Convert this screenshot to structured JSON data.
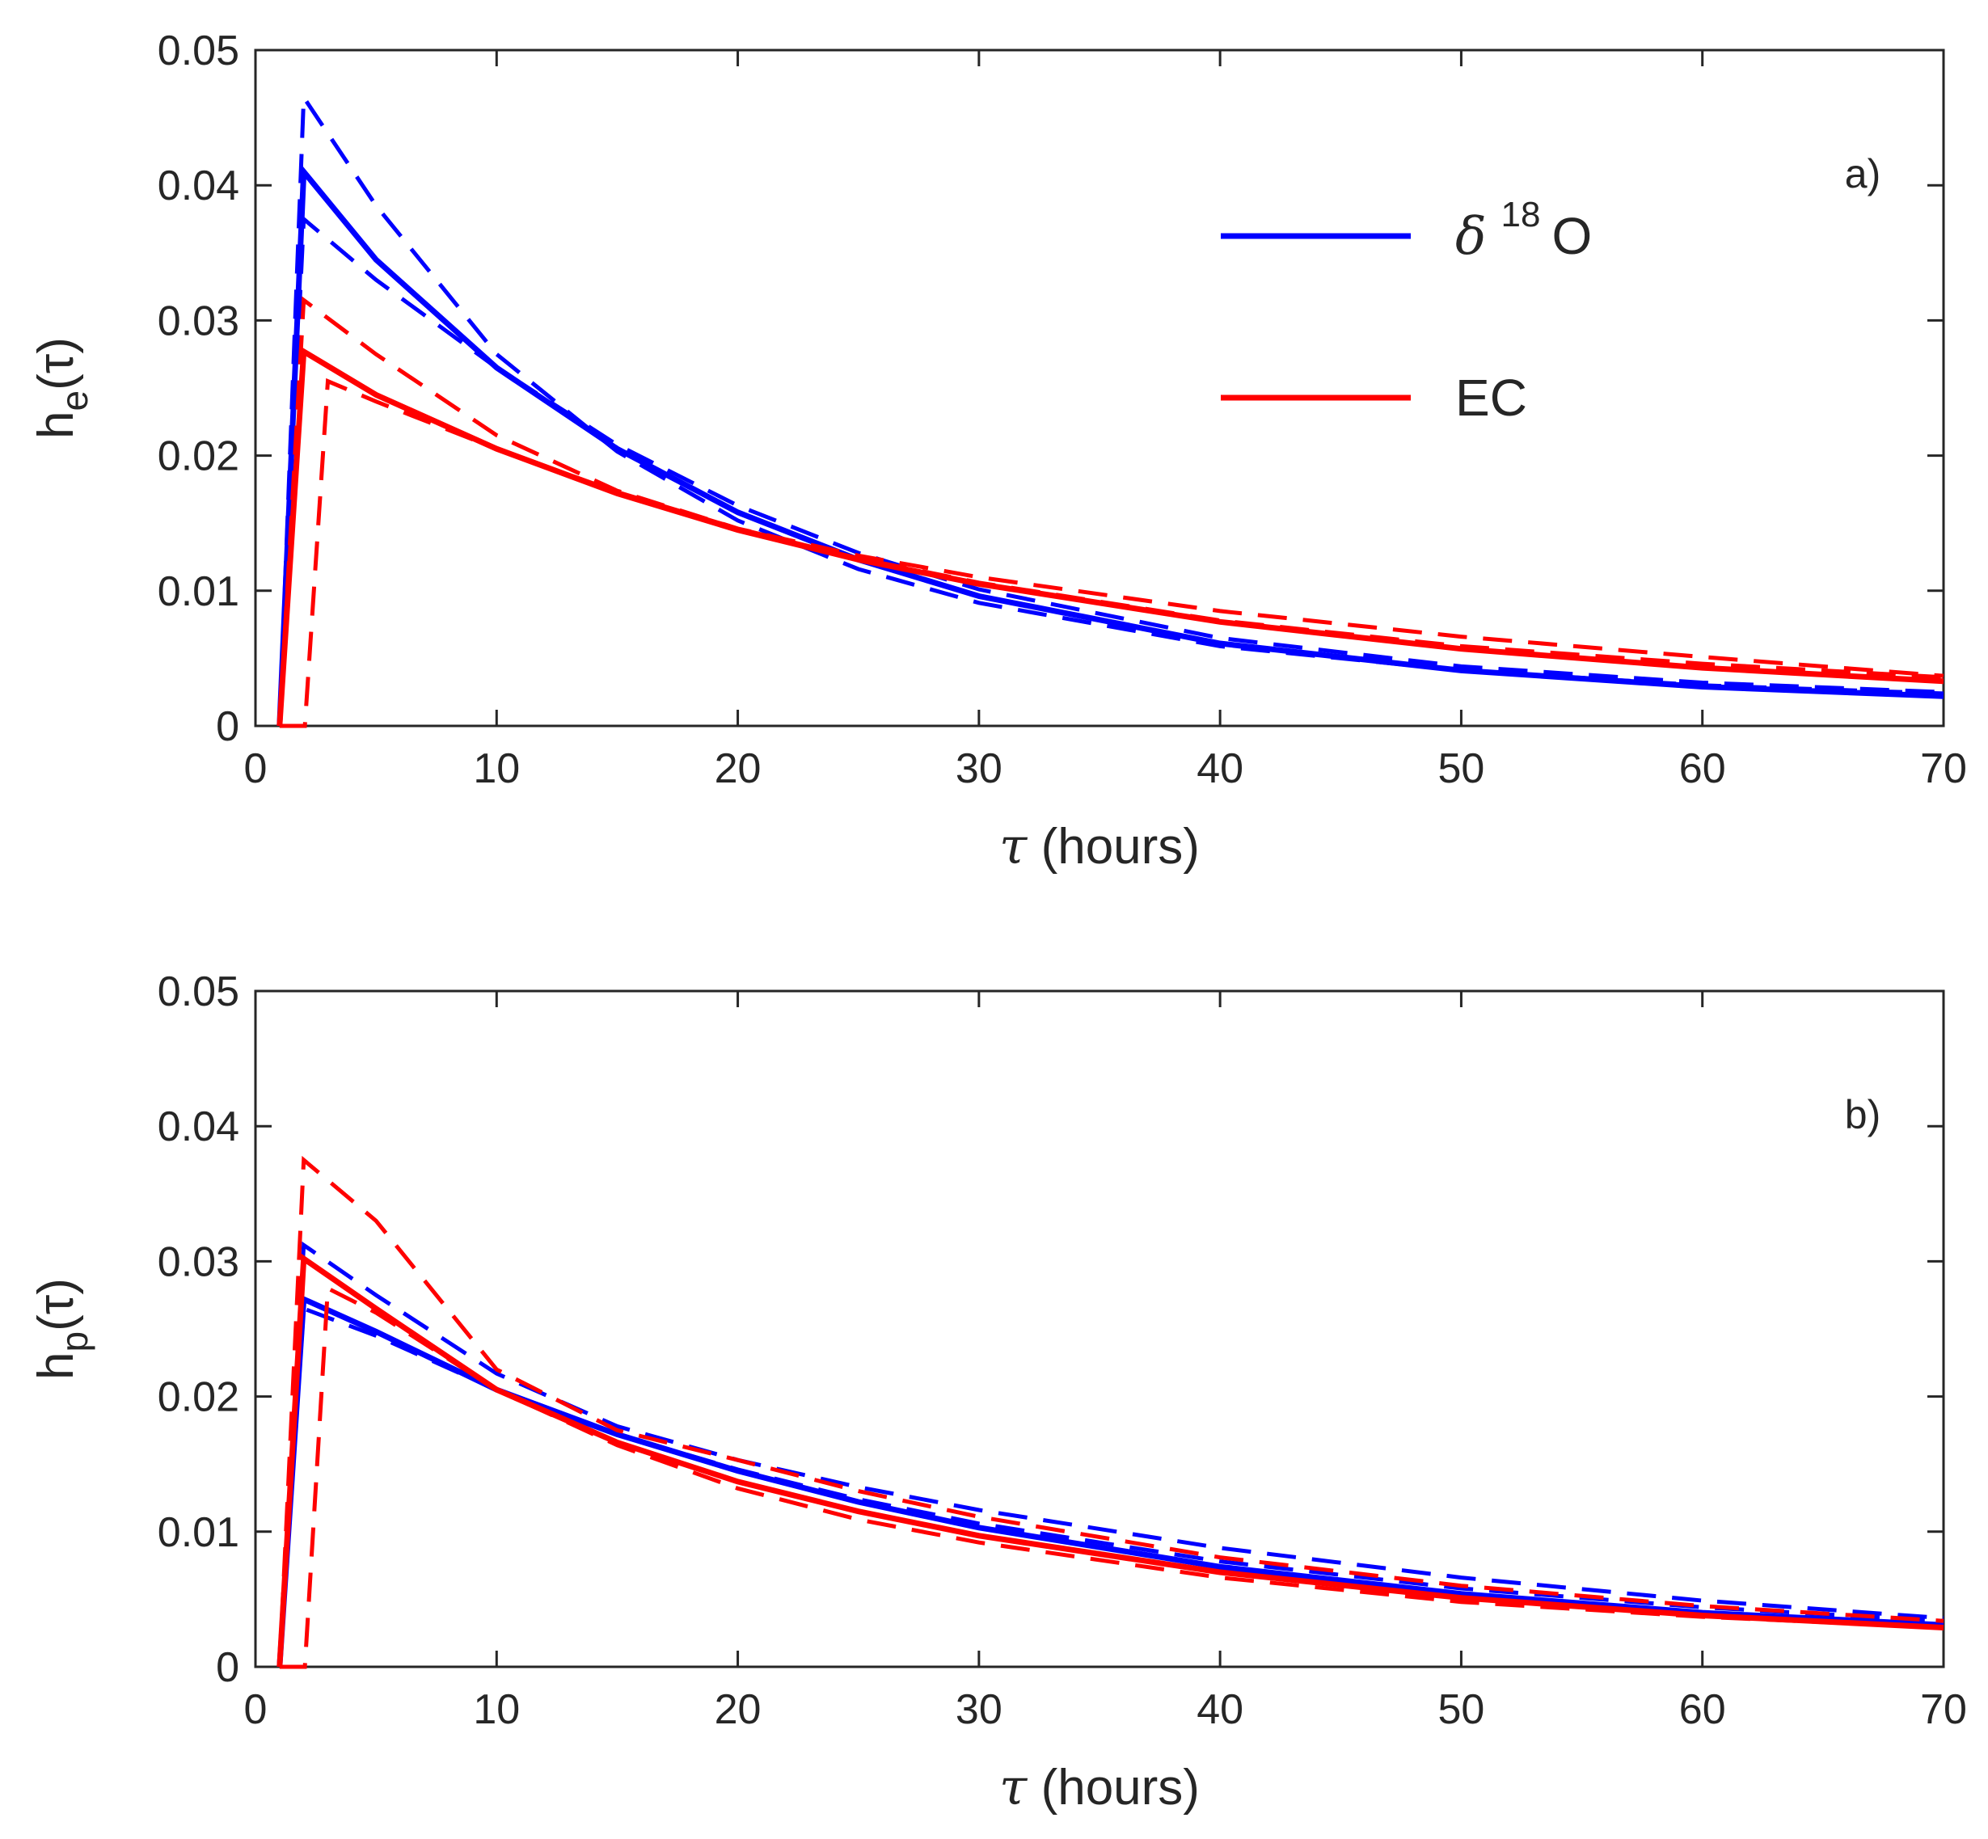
{
  "chart_data": [
    {
      "type": "line",
      "panel": "a)",
      "ylabel_base": "h",
      "ylabel_sub": "e",
      "ylabel_arg": "(τ)",
      "xlabel_sym": "τ",
      "xlabel_text": " (hours)",
      "xlim": [
        0,
        70
      ],
      "ylim": [
        0,
        0.05
      ],
      "xticks": [
        "0",
        "10",
        "20",
        "30",
        "40",
        "50",
        "60",
        "70"
      ],
      "yticks": [
        "0",
        "0.01",
        "0.02",
        "0.03",
        "0.04",
        "0.05"
      ],
      "legend": {
        "position": "top-right",
        "entries": [
          {
            "sym": "δ",
            "sup": "18",
            "text": "O",
            "color": "#0000ff"
          },
          {
            "text": "EC",
            "color": "#ff0000"
          }
        ]
      },
      "series": [
        {
          "name": "δ18O",
          "style": "solid",
          "color": "#0000ff",
          "x": [
            1,
            2,
            5,
            10,
            15,
            20,
            25,
            30,
            40,
            50,
            60,
            70
          ],
          "y": [
            0,
            0.041,
            0.0345,
            0.0265,
            0.0205,
            0.0158,
            0.0123,
            0.0096,
            0.0061,
            0.0041,
            0.0029,
            0.0022
          ]
        },
        {
          "name": "δ18O upper bound",
          "style": "dashed",
          "color": "#0000ff",
          "x": [
            1,
            2,
            5,
            10,
            15,
            20,
            25,
            30,
            40,
            50,
            60,
            70
          ],
          "y": [
            0,
            0.0465,
            0.0385,
            0.0275,
            0.0203,
            0.0152,
            0.0116,
            0.0091,
            0.0059,
            0.0041,
            0.003,
            0.0024
          ]
        },
        {
          "name": "δ18O lower bound",
          "style": "dashed",
          "color": "#0000ff",
          "x": [
            1,
            2,
            5,
            10,
            15,
            20,
            25,
            30,
            40,
            50,
            60,
            70
          ],
          "y": [
            0,
            0.0375,
            0.033,
            0.0265,
            0.0208,
            0.0163,
            0.0128,
            0.0101,
            0.0065,
            0.0044,
            0.0032,
            0.0025
          ]
        },
        {
          "name": "EC",
          "style": "solid",
          "color": "#ff0000",
          "x": [
            1,
            2,
            5,
            10,
            15,
            20,
            25,
            30,
            40,
            50,
            60,
            70
          ],
          "y": [
            0,
            0.0277,
            0.0245,
            0.0205,
            0.0172,
            0.0145,
            0.0123,
            0.0105,
            0.0077,
            0.0057,
            0.0043,
            0.0033
          ]
        },
        {
          "name": "EC upper bound",
          "style": "dashed",
          "color": "#ff0000",
          "x": [
            1,
            2,
            5,
            10,
            15,
            20,
            25,
            30,
            40,
            50,
            60,
            70
          ],
          "y": [
            0,
            0.0315,
            0.0275,
            0.0215,
            0.0174,
            0.0146,
            0.0126,
            0.011,
            0.0085,
            0.0066,
            0.0051,
            0.0037
          ]
        },
        {
          "name": "EC lower bound",
          "style": "dashed",
          "color": "#ff0000",
          "x": [
            1,
            2,
            2.05,
            3,
            5,
            10,
            15,
            20,
            25,
            30,
            40,
            50,
            60,
            70
          ],
          "y": [
            0,
            0,
            0,
            0.0255,
            0.024,
            0.0205,
            0.0173,
            0.0146,
            0.0124,
            0.0106,
            0.0078,
            0.0059,
            0.0046,
            0.0036
          ]
        }
      ]
    },
    {
      "type": "line",
      "panel": "b)",
      "ylabel_base": "h",
      "ylabel_sub": "p",
      "ylabel_arg": "(τ)",
      "xlabel_sym": "τ",
      "xlabel_text": " (hours)",
      "xlim": [
        0,
        70
      ],
      "ylim": [
        0,
        0.05
      ],
      "xticks": [
        "0",
        "10",
        "20",
        "30",
        "40",
        "50",
        "60",
        "70"
      ],
      "yticks": [
        "0",
        "0.01",
        "0.02",
        "0.03",
        "0.04",
        "0.05"
      ],
      "series": [
        {
          "name": "δ18O",
          "style": "solid",
          "color": "#0000ff",
          "x": [
            1,
            2,
            5,
            10,
            15,
            20,
            25,
            30,
            40,
            50,
            60,
            70
          ],
          "y": [
            0,
            0.0272,
            0.0248,
            0.0205,
            0.0172,
            0.0145,
            0.0122,
            0.0103,
            0.0074,
            0.0054,
            0.004,
            0.0031
          ]
        },
        {
          "name": "δ18O upper bound",
          "style": "dashed",
          "color": "#0000ff",
          "x": [
            1,
            2,
            5,
            10,
            15,
            20,
            25,
            30,
            40,
            50,
            60,
            70
          ],
          "y": [
            0,
            0.0312,
            0.0275,
            0.0217,
            0.0178,
            0.0153,
            0.0133,
            0.0116,
            0.0088,
            0.0066,
            0.0049,
            0.0036
          ]
        },
        {
          "name": "δ18O lower bound",
          "style": "dashed",
          "color": "#0000ff",
          "x": [
            1,
            2,
            5,
            10,
            15,
            20,
            25,
            30,
            40,
            50,
            60,
            70
          ],
          "y": [
            0,
            0.0265,
            0.0245,
            0.0205,
            0.0172,
            0.0146,
            0.0124,
            0.0106,
            0.0078,
            0.0058,
            0.0044,
            0.0034
          ]
        },
        {
          "name": "EC",
          "style": "solid",
          "color": "#ff0000",
          "x": [
            1,
            2,
            5,
            10,
            15,
            20,
            25,
            30,
            40,
            50,
            60,
            70
          ],
          "y": [
            0,
            0.0302,
            0.0265,
            0.0205,
            0.0166,
            0.0137,
            0.0115,
            0.0097,
            0.007,
            0.0051,
            0.0038,
            0.0029
          ]
        },
        {
          "name": "EC upper bound",
          "style": "dashed",
          "color": "#ff0000",
          "x": [
            1,
            2,
            5,
            10,
            15,
            20,
            25,
            30,
            40,
            50,
            60,
            70
          ],
          "y": [
            0,
            0.0375,
            0.033,
            0.022,
            0.0175,
            0.0153,
            0.013,
            0.0111,
            0.0081,
            0.006,
            0.0045,
            0.0034
          ]
        },
        {
          "name": "EC lower bound",
          "style": "dashed",
          "color": "#ff0000",
          "x": [
            1,
            2,
            2.05,
            3,
            5,
            10,
            15,
            20,
            25,
            30,
            40,
            50,
            60,
            70
          ],
          "y": [
            0,
            0,
            0,
            0.028,
            0.0262,
            0.0205,
            0.0164,
            0.0132,
            0.0109,
            0.0092,
            0.0066,
            0.0048,
            0.0037,
            0.0029
          ]
        }
      ]
    }
  ]
}
